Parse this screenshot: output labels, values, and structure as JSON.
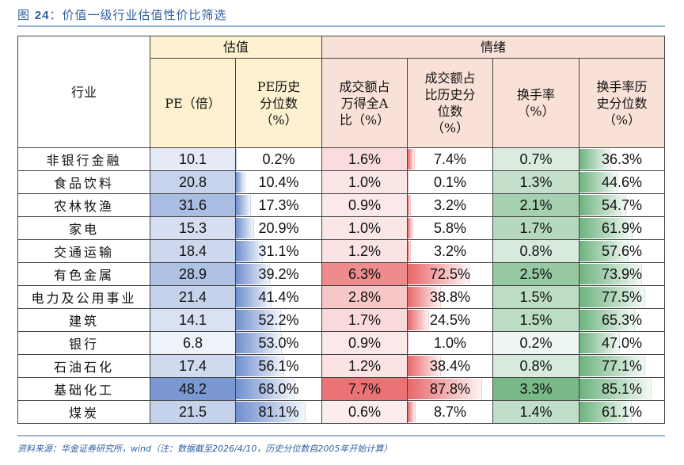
{
  "title": {
    "prefix": "图 ",
    "number": "24",
    "text": "：价值一级行业估值性价比筛选"
  },
  "table": {
    "header_industry": "行业",
    "group_valuation": "估值",
    "group_sentiment": "情绪",
    "columns": [
      "PE（倍）",
      "PE历史\n分位数\n（%）",
      "成交额占\n万得全A\n比（%）",
      "成交额占\n比历史分\n位数\n（%）",
      "换手率\n（%）",
      "换手率历\n史分位数\n（%）"
    ],
    "rows": [
      {
        "industry": "非银行金融",
        "pe": "10.1",
        "pe_pct": "0.2%",
        "amt_share": "1.6%",
        "amt_pct": "7.4%",
        "turnover": "0.7%",
        "turnover_pct": "36.3%"
      },
      {
        "industry": "食品饮料",
        "pe": "20.8",
        "pe_pct": "10.4%",
        "amt_share": "1.0%",
        "amt_pct": "0.1%",
        "turnover": "1.3%",
        "turnover_pct": "44.6%"
      },
      {
        "industry": "农林牧渔",
        "pe": "31.6",
        "pe_pct": "17.3%",
        "amt_share": "0.9%",
        "amt_pct": "3.2%",
        "turnover": "2.1%",
        "turnover_pct": "54.7%"
      },
      {
        "industry": "家电",
        "pe": "15.3",
        "pe_pct": "20.9%",
        "amt_share": "1.0%",
        "amt_pct": "5.8%",
        "turnover": "1.7%",
        "turnover_pct": "61.9%"
      },
      {
        "industry": "交通运输",
        "pe": "18.4",
        "pe_pct": "31.1%",
        "amt_share": "1.2%",
        "amt_pct": "3.2%",
        "turnover": "0.8%",
        "turnover_pct": "57.6%"
      },
      {
        "industry": "有色金属",
        "pe": "28.9",
        "pe_pct": "39.2%",
        "amt_share": "6.3%",
        "amt_pct": "72.5%",
        "turnover": "2.5%",
        "turnover_pct": "73.9%"
      },
      {
        "industry": "电力及公用事业",
        "pe": "21.4",
        "pe_pct": "41.4%",
        "amt_share": "2.8%",
        "amt_pct": "38.8%",
        "turnover": "1.5%",
        "turnover_pct": "77.5%"
      },
      {
        "industry": "建筑",
        "pe": "14.1",
        "pe_pct": "52.2%",
        "amt_share": "1.7%",
        "amt_pct": "24.5%",
        "turnover": "1.5%",
        "turnover_pct": "65.3%"
      },
      {
        "industry": "银行",
        "pe": "6.8",
        "pe_pct": "53.0%",
        "amt_share": "0.9%",
        "amt_pct": "1.0%",
        "turnover": "0.2%",
        "turnover_pct": "47.0%"
      },
      {
        "industry": "石油石化",
        "pe": "17.4",
        "pe_pct": "56.1%",
        "amt_share": "1.2%",
        "amt_pct": "38.4%",
        "turnover": "0.8%",
        "turnover_pct": "77.1%"
      },
      {
        "industry": "基础化工",
        "pe": "48.2",
        "pe_pct": "68.0%",
        "amt_share": "7.7%",
        "amt_pct": "87.8%",
        "turnover": "3.3%",
        "turnover_pct": "85.1%"
      },
      {
        "industry": "煤炭",
        "pe": "21.5",
        "pe_pct": "81.1%",
        "amt_share": "0.6%",
        "amt_pct": "8.7%",
        "turnover": "1.4%",
        "turnover_pct": "61.1%"
      }
    ]
  },
  "colors": {
    "title": "#2e5fa0",
    "valuation_header_bg": "#fdf1d0",
    "sentiment_header_bg": "#f9e1d8",
    "pe_scale": "#6f8fce",
    "amt_scale": "#e8676a",
    "turnover_scale": "#6db37e"
  },
  "source": "资料来源：华金证券研究所，wind（注：数据截至2026/4/10，历史分位数自2005年开始计算）"
}
